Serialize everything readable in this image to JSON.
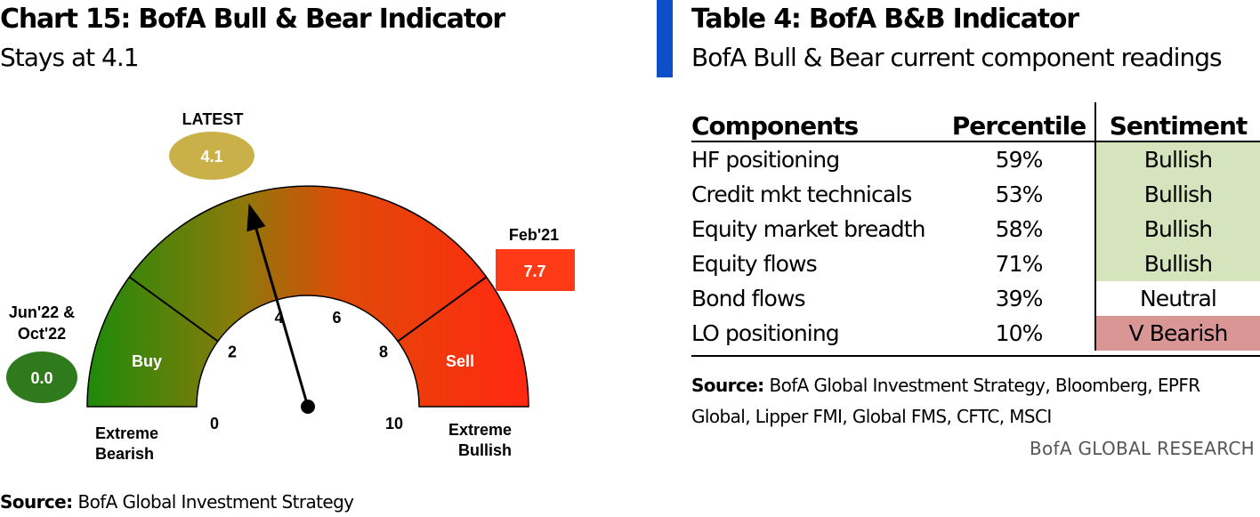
{
  "left_panel": {
    "title": "Chart 15: BofA Bull & Bear Indicator",
    "subtitle": "Stays at 4.1",
    "source_label": "Source:",
    "source_text": "BofA Global Investment Strategy"
  },
  "right_panel": {
    "title": "Table 4: BofA B&B Indicator",
    "subtitle": "BofA Bull & Bear current component readings",
    "source_label": "Source:",
    "source_line1": "BofA Global Investment Strategy, Bloomberg, EPFR",
    "source_line2": "Global, Lipper FMI, Global FMS, CFTC, MSCI",
    "brand": "BofA GLOBAL RESEARCH"
  },
  "colors": {
    "accent_bar": "#0d4fc8",
    "buy_zone": "#1e8a0a",
    "sell_zone": "#ff2a10",
    "latest_bubble": "#c9b048",
    "low_bubble": "#2f7a1c",
    "high_box": "#ff3a16",
    "bullish_cell": "#d6e4bd",
    "bearish_cell": "#d99694"
  },
  "chart_data": {
    "type": "gauge",
    "min": 0,
    "max": 10,
    "ticks": [
      "0",
      "2",
      "4",
      "6",
      "8",
      "10"
    ],
    "tick_values": [
      0,
      2,
      4,
      6,
      8,
      10
    ],
    "value": 4.1,
    "zones": [
      {
        "label": "Buy",
        "from": 0,
        "to": 2
      },
      {
        "label": "Sell",
        "from": 8,
        "to": 10
      }
    ],
    "left_label_line1": "Extreme",
    "left_label_line2": "Bearish",
    "right_label_line1": "Extreme",
    "right_label_line2": "Bullish",
    "latest": {
      "label": "LATEST",
      "value": "4.1"
    },
    "low": {
      "label_line1": "Jun'22 &",
      "label_line2": "Oct'22",
      "value": "0.0"
    },
    "high": {
      "label": "Feb'21",
      "value": "7.7"
    }
  },
  "table": {
    "headers": [
      "Components",
      "Percentile",
      "Sentiment"
    ],
    "rows": [
      {
        "component": "HF positioning",
        "percentile": "59%",
        "sentiment": "Bullish"
      },
      {
        "component": "Credit mkt technicals",
        "percentile": "53%",
        "sentiment": "Bullish"
      },
      {
        "component": "Equity market breadth",
        "percentile": "58%",
        "sentiment": "Bullish"
      },
      {
        "component": "Equity flows",
        "percentile": "71%",
        "sentiment": "Bullish"
      },
      {
        "component": "Bond flows",
        "percentile": "39%",
        "sentiment": "Neutral"
      },
      {
        "component": "LO positioning",
        "percentile": "10%",
        "sentiment": "V Bearish"
      }
    ]
  }
}
